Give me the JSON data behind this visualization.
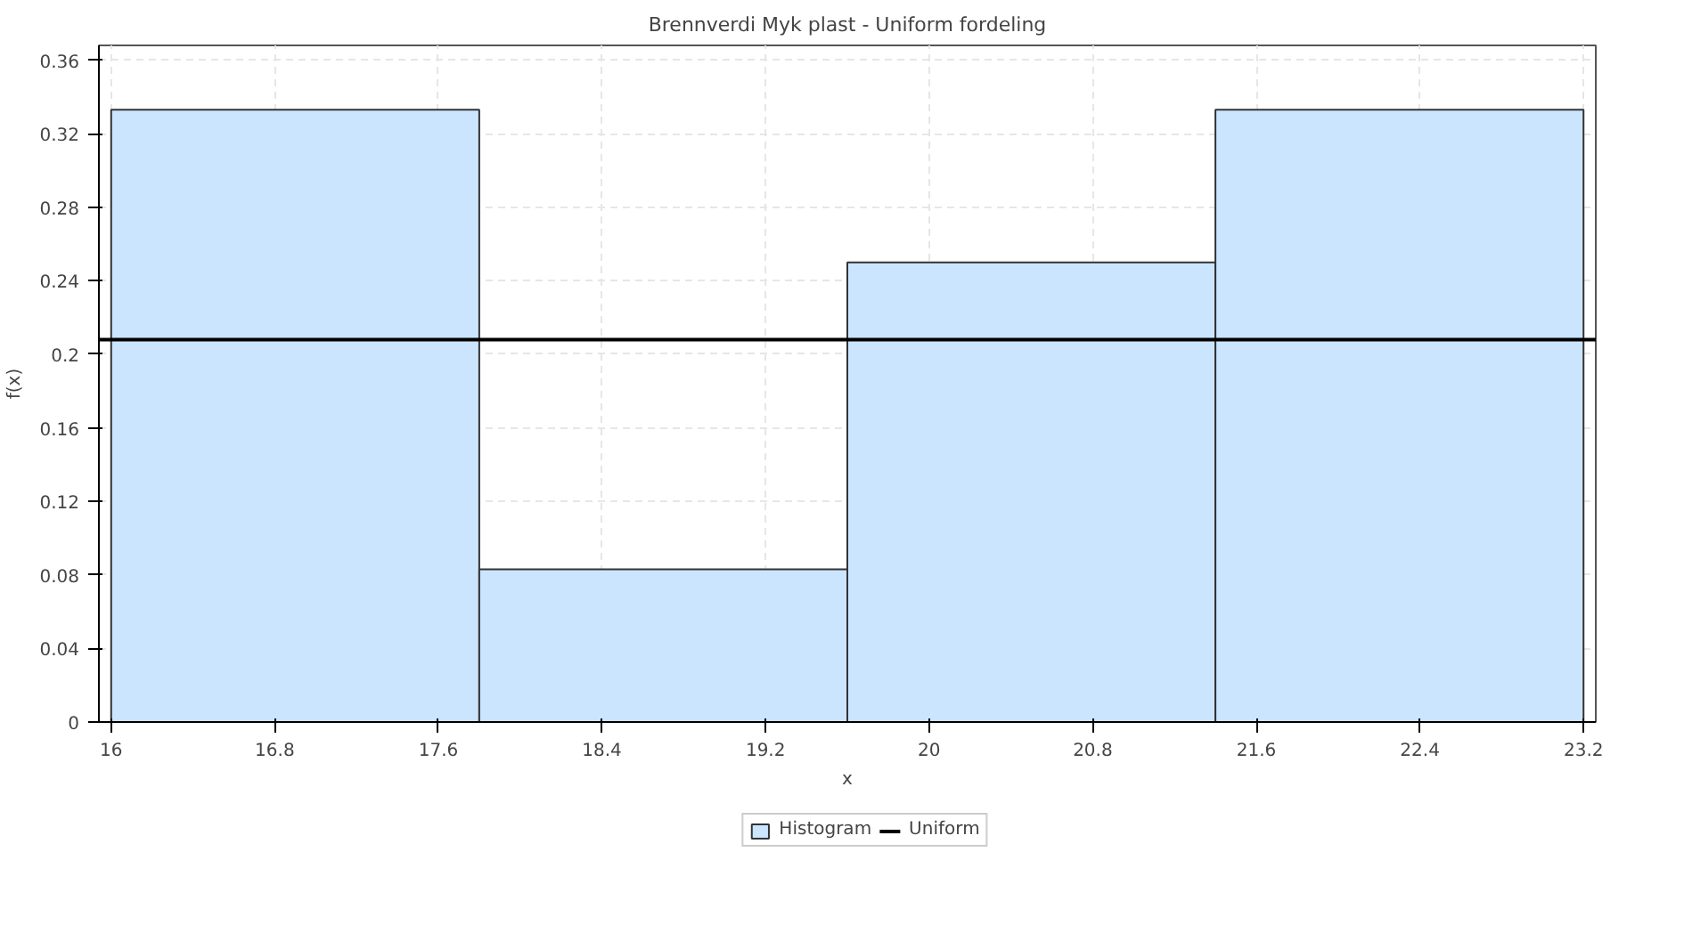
{
  "chart_data": {
    "type": "histogram",
    "title": "Brennverdi Myk plast - Uniform fordeling",
    "xlabel": "x",
    "ylabel": "f(x)",
    "series": [
      {
        "name": "Histogram",
        "type": "histogram",
        "color": "#cce5ff",
        "bins": [
          16,
          17.8,
          19.6,
          21.4,
          23.2
        ],
        "values": [
          0.333,
          0.083,
          0.25,
          0.333
        ]
      },
      {
        "name": "Uniform",
        "type": "line",
        "color": "#000000",
        "x": [
          15.94,
          23.26
        ],
        "values": [
          0.208,
          0.208
        ]
      }
    ],
    "xlim": [
      15.94,
      23.26
    ],
    "ylim": [
      0,
      0.368
    ],
    "xticks": [
      16,
      16.8,
      17.6,
      18.4,
      19.2,
      20,
      20.8,
      21.6,
      22.4,
      23.2
    ],
    "yticks": [
      0,
      0.04,
      0.08,
      0.12,
      0.16,
      0.2,
      0.24,
      0.28,
      0.32,
      0.36
    ],
    "grid": true,
    "legend": "bottom"
  }
}
